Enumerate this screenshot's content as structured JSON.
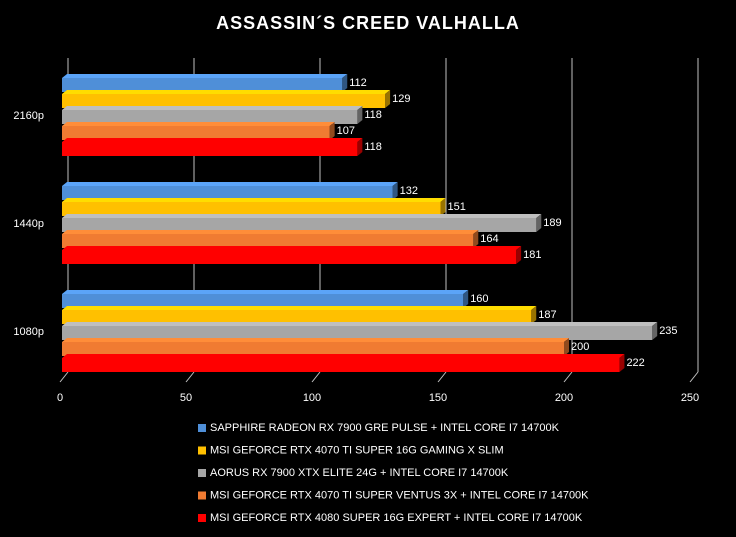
{
  "chart_data": {
    "type": "bar",
    "orientation": "horizontal",
    "title": "ASSASSIN´S CREED VALHALLA",
    "categories": [
      "2160p",
      "1440p",
      "1080p"
    ],
    "series": [
      {
        "name": "SAPPHIRE RADEON RX 7900 GRE PULSE + INTEL CORE I7 14700K",
        "color": "#4f8fd8",
        "values": [
          112,
          132,
          160
        ]
      },
      {
        "name": "MSI GEFORCE RTX 4070 TI SUPER 16G GAMING X SLIM",
        "color": "#ffc000",
        "values": [
          129,
          151,
          187
        ]
      },
      {
        "name": "AORUS RX 7900 XTX ELITE 24G + INTEL CORE I7 14700K",
        "color": "#a6a6a6",
        "values": [
          118,
          189,
          235
        ]
      },
      {
        "name": "MSI GEFORCE RTX 4070 TI SUPER VENTUS 3X + INTEL CORE I7 14700K",
        "color": "#f07b32",
        "values": [
          107,
          164,
          200
        ]
      },
      {
        "name": "MSI GEFORCE RTX 4080 SUPER 16G EXPERT + INTEL CORE I7 14700K",
        "color": "#ff0000",
        "values": [
          118,
          181,
          222
        ]
      }
    ],
    "xlim": [
      0,
      250
    ],
    "xticks": [
      0,
      50,
      100,
      150,
      200,
      250
    ],
    "grid": true,
    "legend": "bottom"
  }
}
